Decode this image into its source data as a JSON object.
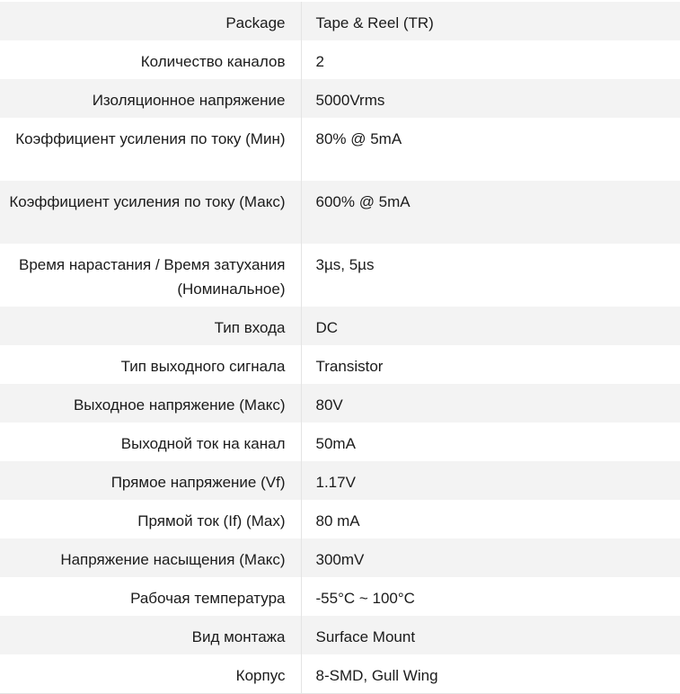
{
  "specs": [
    {
      "label": "Package",
      "value": "Tape & Reel (TR)"
    },
    {
      "label": "Количество каналов",
      "value": "2"
    },
    {
      "label": "Изоляционное напряжение",
      "value": "5000Vrms"
    },
    {
      "label": "Коэффициент усиления по току (Мин)",
      "value": "80% @ 5mA"
    },
    {
      "label": "Коэффициент усиления по току (Макс)",
      "value": "600% @ 5mA"
    },
    {
      "label": "Время нарастания / Время затухания (Номинальное)",
      "value": "3µs, 5µs"
    },
    {
      "label": "Тип входа",
      "value": "DC"
    },
    {
      "label": "Тип выходного сигнала",
      "value": "Transistor"
    },
    {
      "label": "Выходное напряжение (Макс)",
      "value": "80V"
    },
    {
      "label": "Выходной ток на канал",
      "value": "50mA"
    },
    {
      "label": "Прямое напряжение (Vf)",
      "value": "1.17V"
    },
    {
      "label": "Прямой ток (If) (Max)",
      "value": "80 mA"
    },
    {
      "label": "Напряжение насыщения (Макс)",
      "value": "300mV"
    },
    {
      "label": "Рабочая температура",
      "value": "-55°C ~ 100°C"
    },
    {
      "label": "Вид монтажа",
      "value": "Surface Mount"
    },
    {
      "label": "Корпус",
      "value": "8-SMD, Gull Wing"
    }
  ]
}
